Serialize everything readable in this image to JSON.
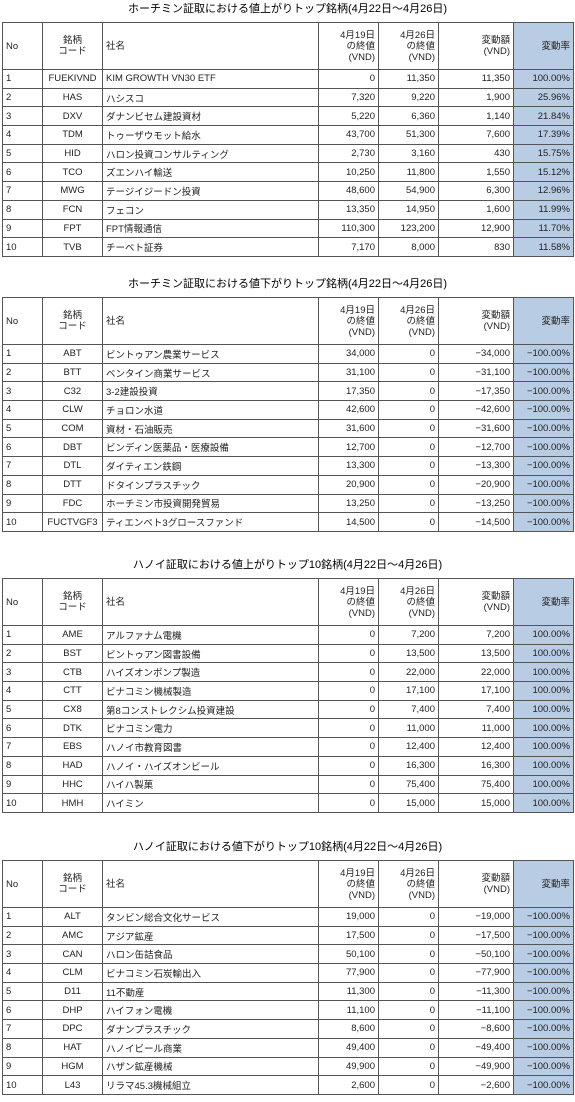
{
  "columns": [
    "No",
    "銘柄\nコード",
    "社名",
    "4月19日\nの終値\n(VND)",
    "4月26日\nの終値\n(VND)",
    "変動額\n(VND)",
    "変動率"
  ],
  "tables": [
    {
      "title": "ホーチミン証取における値上がりトップ銘柄(4月22日～4月26日)",
      "rows": [
        [
          "1",
          "FUEKIVND",
          "KIM GROWTH VN30 ETF",
          "0",
          "11,350",
          "11,350",
          "100.00%"
        ],
        [
          "2",
          "HAS",
          "ハシスコ",
          "7,320",
          "9,220",
          "1,900",
          "25.96%"
        ],
        [
          "3",
          "DXV",
          "ダナンビセム建設資材",
          "5,220",
          "6,360",
          "1,140",
          "21.84%"
        ],
        [
          "4",
          "TDM",
          "トゥーザウモット給水",
          "43,700",
          "51,300",
          "7,600",
          "17.39%"
        ],
        [
          "5",
          "HID",
          "ハロン投資コンサルティング",
          "2,730",
          "3,160",
          "430",
          "15.75%"
        ],
        [
          "6",
          "TCO",
          "ズエンハイ輸送",
          "10,250",
          "11,800",
          "1,550",
          "15.12%"
        ],
        [
          "7",
          "MWG",
          "テージイジードン投資",
          "48,600",
          "54,900",
          "6,300",
          "12.96%"
        ],
        [
          "8",
          "FCN",
          "フェコン",
          "13,350",
          "14,950",
          "1,600",
          "11.99%"
        ],
        [
          "9",
          "FPT",
          "FPT情報通信",
          "110,300",
          "123,200",
          "12,900",
          "11.70%"
        ],
        [
          "10",
          "TVB",
          "チーベト証券",
          "7,170",
          "8,000",
          "830",
          "11.58%"
        ]
      ]
    },
    {
      "title": "ホーチミン証取における値下がりトップ銘柄(4月22日～4月26日)",
      "rows": [
        [
          "1",
          "ABT",
          "ビントゥアン農業サービス",
          "34,000",
          "0",
          "−34,000",
          "−100.00%"
        ],
        [
          "2",
          "BTT",
          "ベンタイン商業サービス",
          "31,100",
          "0",
          "−31,100",
          "−100.00%"
        ],
        [
          "3",
          "C32",
          "3-2建設投資",
          "17,350",
          "0",
          "−17,350",
          "−100.00%"
        ],
        [
          "4",
          "CLW",
          "チョロン水道",
          "42,600",
          "0",
          "−42,600",
          "−100.00%"
        ],
        [
          "5",
          "COM",
          "資材・石油販売",
          "31,600",
          "0",
          "−31,600",
          "−100.00%"
        ],
        [
          "6",
          "DBT",
          "ビンディン医薬品・医療設備",
          "12,700",
          "0",
          "−12,700",
          "−100.00%"
        ],
        [
          "7",
          "DTL",
          "ダイティエン鉄鋼",
          "13,300",
          "0",
          "−13,300",
          "−100.00%"
        ],
        [
          "8",
          "DTT",
          "ドタインプラスチック",
          "20,900",
          "0",
          "−20,900",
          "−100.00%"
        ],
        [
          "9",
          "FDC",
          "ホーチミン市投資開発貿易",
          "13,250",
          "0",
          "−13,250",
          "−100.00%"
        ],
        [
          "10",
          "FUCTVGF3",
          "ティエンベト3グロースファンド",
          "14,500",
          "0",
          "−14,500",
          "−100.00%"
        ]
      ]
    },
    {
      "title": "ハノイ証取における値上がりトップ10銘柄(4月22日～4月26日)",
      "rows": [
        [
          "1",
          "AME",
          "アルファナム電機",
          "0",
          "7,200",
          "7,200",
          "100.00%"
        ],
        [
          "2",
          "BST",
          "ビントゥアン図書設備",
          "0",
          "13,500",
          "13,500",
          "100.00%"
        ],
        [
          "3",
          "CTB",
          "ハイズオンポンプ製造",
          "0",
          "22,000",
          "22,000",
          "100.00%"
        ],
        [
          "4",
          "CTT",
          "ビナコミン機械製造",
          "0",
          "17,100",
          "17,100",
          "100.00%"
        ],
        [
          "5",
          "CX8",
          "第8コンストレクシム投資建設",
          "0",
          "7,400",
          "7,400",
          "100.00%"
        ],
        [
          "6",
          "DTK",
          "ビナコミン電力",
          "0",
          "11,000",
          "11,000",
          "100.00%"
        ],
        [
          "7",
          "EBS",
          "ハノイ市教育図書",
          "0",
          "12,400",
          "12,400",
          "100.00%"
        ],
        [
          "8",
          "HAD",
          "ハノイ・ハイズオンビール",
          "0",
          "16,300",
          "16,300",
          "100.00%"
        ],
        [
          "9",
          "HHC",
          "ハイハ製菓",
          "0",
          "75,400",
          "75,400",
          "100.00%"
        ],
        [
          "10",
          "HMH",
          "ハイミン",
          "0",
          "15,000",
          "15,000",
          "100.00%"
        ]
      ]
    },
    {
      "title": "ハノイ証取における値下がりトップ10銘柄(4月22日～4月26日)",
      "rows": [
        [
          "1",
          "ALT",
          "タンビン総合文化サービス",
          "19,000",
          "0",
          "−19,000",
          "−100.00%"
        ],
        [
          "2",
          "AMC",
          "アジア鉱産",
          "17,500",
          "0",
          "−17,500",
          "−100.00%"
        ],
        [
          "3",
          "CAN",
          "ハロン缶詰食品",
          "50,100",
          "0",
          "−50,100",
          "−100.00%"
        ],
        [
          "4",
          "CLM",
          "ビナコミン石炭輸出入",
          "77,900",
          "0",
          "−77,900",
          "−100.00%"
        ],
        [
          "5",
          "D11",
          "11不動産",
          "11,300",
          "0",
          "−11,300",
          "−100.00%"
        ],
        [
          "6",
          "DHP",
          "ハイフォン電機",
          "11,100",
          "0",
          "−11,100",
          "−100.00%"
        ],
        [
          "7",
          "DPC",
          "ダナンプラスチック",
          "8,600",
          "0",
          "−8,600",
          "−100.00%"
        ],
        [
          "8",
          "HAT",
          "ハノイビール商業",
          "49,400",
          "0",
          "−49,400",
          "−100.00%"
        ],
        [
          "9",
          "HGM",
          "ハザン鉱産機械",
          "49,900",
          "0",
          "−49,900",
          "−100.00%"
        ],
        [
          "10",
          "L43",
          "リラマ45.3機械組立",
          "2,600",
          "0",
          "−2,600",
          "−100.00%"
        ]
      ]
    }
  ]
}
